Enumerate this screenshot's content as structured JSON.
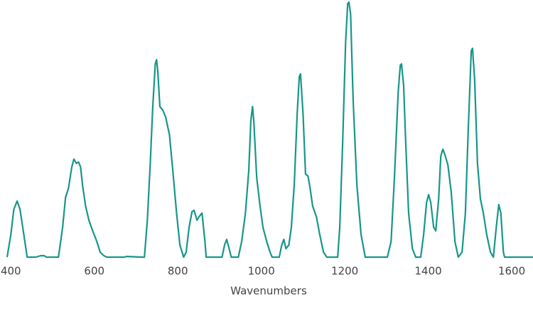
{
  "chart_data": {
    "type": "line",
    "xlabel": "Wavenumbers",
    "x": [
      391,
      400,
      407,
      415,
      422,
      431,
      439,
      460,
      471,
      480,
      485,
      514,
      524,
      531,
      538,
      546,
      551,
      557,
      562,
      567,
      572,
      579,
      587,
      596,
      606,
      614,
      623,
      630,
      672,
      677,
      715,
      720,
      727,
      734,
      740,
      746,
      749,
      752,
      757,
      764,
      771,
      780,
      788,
      797,
      805,
      814,
      820,
      827,
      834,
      839,
      846,
      851,
      858,
      865,
      868,
      906,
      912,
      917,
      923,
      928,
      945,
      953,
      962,
      970,
      975,
      979,
      982,
      989,
      997,
      1004,
      1013,
      1021,
      1026,
      1043,
      1049,
      1054,
      1059,
      1066,
      1072,
      1079,
      1086,
      1091,
      1094,
      1100,
      1106,
      1112,
      1117,
      1123,
      1132,
      1140,
      1149,
      1157,
      1183,
      1188,
      1195,
      1202,
      1207,
      1210,
      1214,
      1220,
      1229,
      1239,
      1249,
      1302,
      1311,
      1319,
      1328,
      1333,
      1336,
      1341,
      1346,
      1353,
      1362,
      1370,
      1382,
      1389,
      1396,
      1401,
      1406,
      1413,
      1418,
      1425,
      1430,
      1435,
      1440,
      1447,
      1455,
      1464,
      1472,
      1481,
      1489,
      1496,
      1503,
      1506,
      1511,
      1518,
      1525,
      1532,
      1540,
      1549,
      1556,
      1563,
      1569,
      1574,
      1580,
      1583,
      1651
    ],
    "series": [
      {
        "color": "#17968a",
        "values": [
          0,
          32,
          67,
          79,
          67,
          32,
          0,
          0,
          2,
          2,
          0,
          0,
          42,
          84,
          97,
          127,
          138,
          132,
          134,
          127,
          100,
          72,
          52,
          37,
          22,
          7,
          2,
          0,
          0,
          1,
          0,
          0,
          52,
          132,
          212,
          272,
          278,
          262,
          212,
          207,
          197,
          172,
          122,
          62,
          17,
          0,
          7,
          42,
          64,
          66,
          52,
          57,
          62,
          22,
          0,
          0,
          17,
          25,
          12,
          0,
          0,
          22,
          62,
          122,
          192,
          212,
          192,
          112,
          72,
          42,
          22,
          7,
          0,
          0,
          17,
          25,
          12,
          17,
          42,
          102,
          202,
          254,
          258,
          202,
          117,
          114,
          97,
          72,
          57,
          32,
          7,
          0,
          0,
          42,
          162,
          302,
          357,
          359,
          342,
          222,
          102,
          32,
          0,
          0,
          22,
          112,
          232,
          270,
          272,
          242,
          162,
          62,
          12,
          0,
          0,
          32,
          77,
          88,
          77,
          42,
          37,
          82,
          142,
          152,
          144,
          130,
          92,
          22,
          0,
          7,
          62,
          182,
          290,
          294,
          252,
          132,
          82,
          62,
          32,
          7,
          0,
          42,
          74,
          62,
          7,
          0,
          0
        ]
      }
    ],
    "xlim": [
      391,
      1651
    ],
    "xticks": [
      400,
      600,
      800,
      1000,
      1200,
      1400,
      1600
    ],
    "ylim": [
      0,
      361
    ]
  }
}
